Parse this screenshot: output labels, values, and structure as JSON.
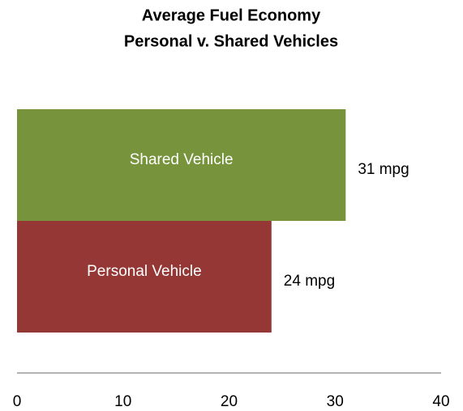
{
  "chart_data": {
    "type": "barh",
    "title": "Average Fuel Economy",
    "subtitle": "Personal v. Shared Vehicles",
    "categories": [
      "Shared Vehicle",
      "Personal Vehicle"
    ],
    "values": [
      31,
      24
    ],
    "value_labels": [
      "31 mpg",
      "24 mpg"
    ],
    "colors": [
      "#77933c",
      "#953735"
    ],
    "xlim": [
      0,
      40
    ],
    "xticks": [
      0,
      10,
      20,
      30,
      40
    ],
    "grid": false
  }
}
